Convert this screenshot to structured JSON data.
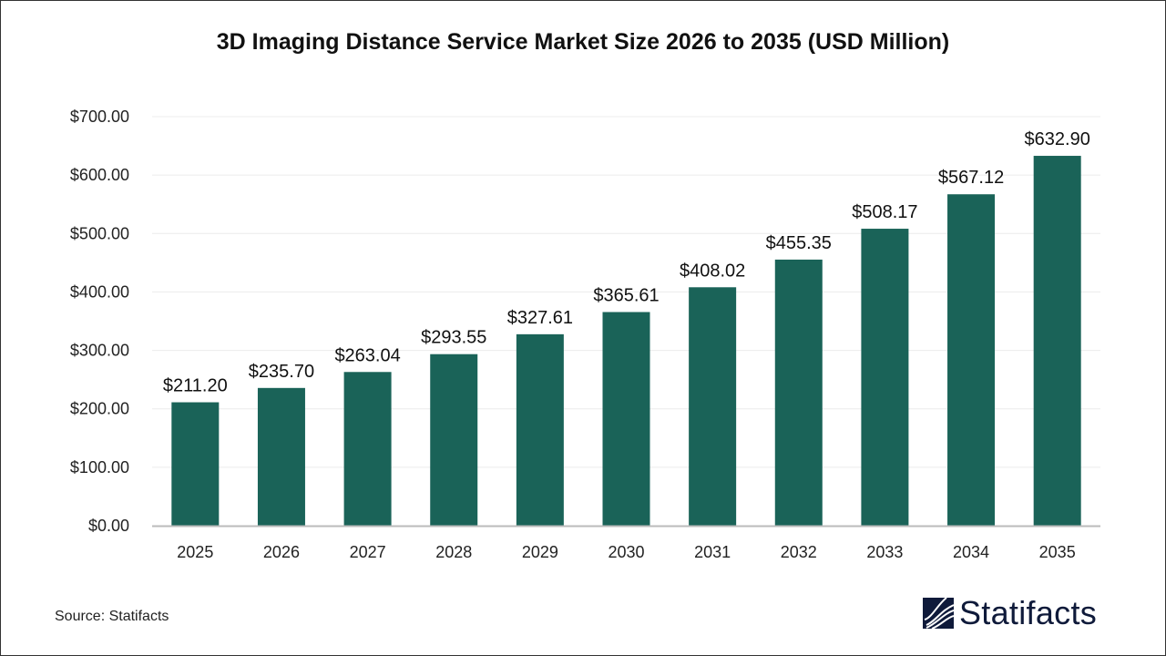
{
  "chart_data": {
    "type": "bar",
    "title": "3D Imaging Distance Service Market Size 2026 to 2035 (USD Million)",
    "categories": [
      "2025",
      "2026",
      "2027",
      "2028",
      "2029",
      "2030",
      "2031",
      "2032",
      "2033",
      "2034",
      "2035"
    ],
    "values": [
      211.2,
      235.7,
      263.04,
      293.55,
      327.61,
      365.61,
      408.02,
      455.35,
      508.17,
      567.12,
      632.9
    ],
    "data_labels": [
      "$211.20",
      "$235.70",
      "$263.04",
      "$293.55",
      "$327.61",
      "$365.61",
      "$408.02",
      "$455.35",
      "$508.17",
      "$567.12",
      "$632.90"
    ],
    "yticks": [
      0,
      100,
      200,
      300,
      400,
      500,
      600,
      700
    ],
    "ytick_labels": [
      "$0.00",
      "$100.00",
      "$200.00",
      "$300.00",
      "$400.00",
      "$500.00",
      "$600.00",
      "$700.00"
    ],
    "ylim": [
      0,
      700
    ],
    "xlabel": "",
    "ylabel": "",
    "grid": true,
    "bar_color": "#1a6358"
  },
  "source": "Source: Statifacts",
  "logo": {
    "text": "Statifacts",
    "color": "#0f1a3a"
  }
}
